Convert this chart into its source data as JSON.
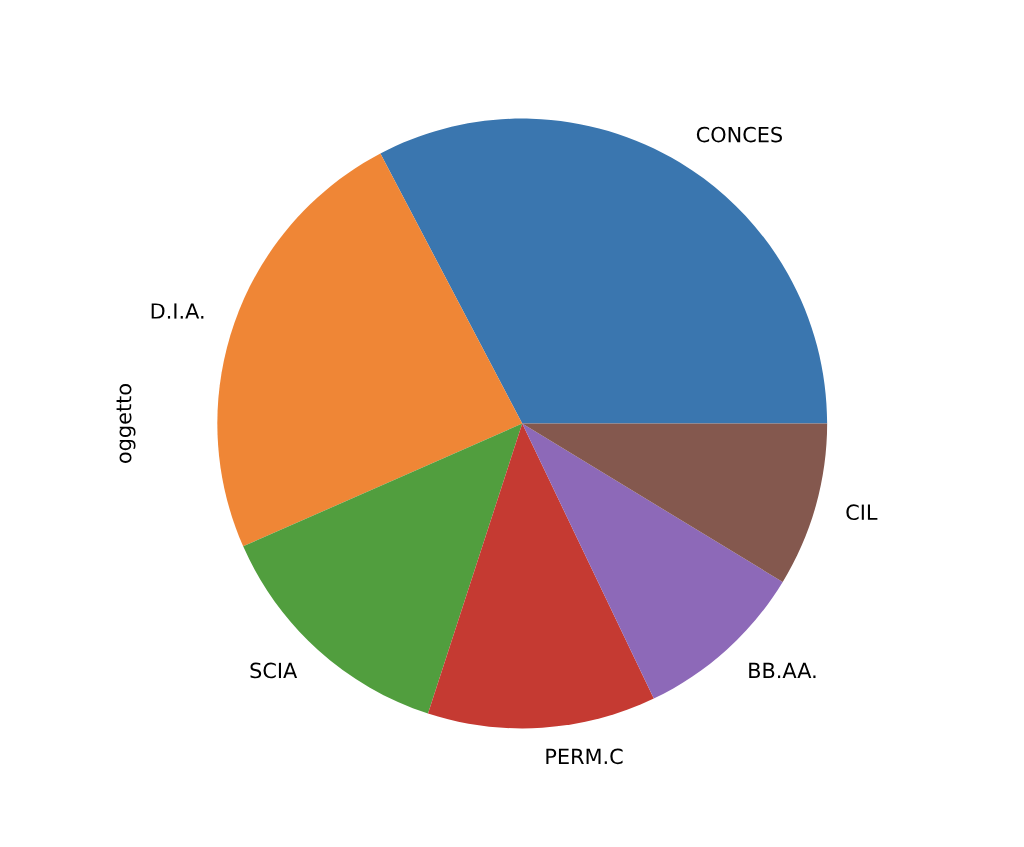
{
  "chart_data": {
    "type": "pie",
    "ylabel": "oggetto",
    "categories": [
      "CONCES",
      "D.I.A.",
      "SCIA",
      "PERM.C",
      "BB.AA.",
      "CIL"
    ],
    "values": [
      32.7,
      23.9,
      13.4,
      12.1,
      9.2,
      8.7
    ],
    "colors": [
      "#3a76af",
      "#ef8636",
      "#519e3e",
      "#c53a32",
      "#8d69b8",
      "#84584e"
    ]
  }
}
